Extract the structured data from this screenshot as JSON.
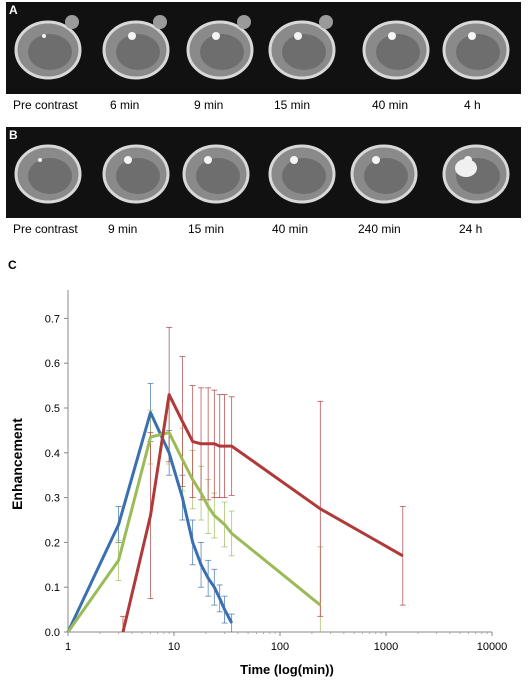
{
  "panel_a": {
    "label": "A",
    "captions": [
      "Pre contrast",
      "6 min",
      "9 min",
      "15 min",
      "40 min",
      "4 h"
    ]
  },
  "panel_b": {
    "label": "B",
    "captions": [
      "Pre contrast",
      "9 min",
      "15 min",
      "40 min",
      "240 min",
      "24 h"
    ]
  },
  "panel_c": {
    "label": "C"
  },
  "chart_data": {
    "type": "line",
    "title": "",
    "xlabel": "Time (log(min))",
    "ylabel": "Enhancement",
    "x_scale": "log",
    "xlim": [
      1,
      10000
    ],
    "ylim": [
      0,
      0.75
    ],
    "x_ticks": [
      "1",
      "10",
      "100",
      "1000",
      "10000"
    ],
    "y_ticks": [
      "0.0",
      "0.1",
      "0.2",
      "0.3",
      "0.4",
      "0.5",
      "0.6",
      "0.7"
    ],
    "grid": false,
    "legend": "none",
    "series": [
      {
        "color": "#3a6fb0",
        "points": [
          {
            "x": 1,
            "y": 0.0,
            "err": 0.0
          },
          {
            "x": 3,
            "y": 0.24,
            "err": 0.04
          },
          {
            "x": 6,
            "y": 0.49,
            "err": 0.065
          },
          {
            "x": 9,
            "y": 0.4,
            "err": 0.05
          },
          {
            "x": 12,
            "y": 0.3,
            "err": 0.05
          },
          {
            "x": 15,
            "y": 0.2,
            "err": 0.05
          },
          {
            "x": 18,
            "y": 0.15,
            "err": 0.05
          },
          {
            "x": 21,
            "y": 0.12,
            "err": 0.04
          },
          {
            "x": 24,
            "y": 0.1,
            "err": 0.04
          },
          {
            "x": 27,
            "y": 0.075,
            "err": 0.03
          },
          {
            "x": 30,
            "y": 0.05,
            "err": 0.03
          },
          {
            "x": 35,
            "y": 0.02,
            "err": 0.02
          }
        ]
      },
      {
        "color": "#9bbb59",
        "points": [
          {
            "x": 1,
            "y": 0.0,
            "err": 0.0
          },
          {
            "x": 3,
            "y": 0.16,
            "err": 0.045
          },
          {
            "x": 6,
            "y": 0.435,
            "err": 0.06
          },
          {
            "x": 9,
            "y": 0.445,
            "err": 0.07
          },
          {
            "x": 12,
            "y": 0.385,
            "err": 0.07
          },
          {
            "x": 15,
            "y": 0.34,
            "err": 0.065
          },
          {
            "x": 18,
            "y": 0.31,
            "err": 0.06
          },
          {
            "x": 21,
            "y": 0.28,
            "err": 0.06
          },
          {
            "x": 24,
            "y": 0.26,
            "err": 0.05
          },
          {
            "x": 30,
            "y": 0.24,
            "err": 0.05
          },
          {
            "x": 35,
            "y": 0.22,
            "err": 0.05
          },
          {
            "x": 240,
            "y": 0.06,
            "err": 0.13
          }
        ]
      },
      {
        "color": "#b03a3a",
        "points": [
          {
            "x": 3.3,
            "y": 0.0,
            "err": 0.035
          },
          {
            "x": 6,
            "y": 0.26,
            "err": 0.185
          },
          {
            "x": 9,
            "y": 0.53,
            "err": 0.15
          },
          {
            "x": 12,
            "y": 0.47,
            "err": 0.145
          },
          {
            "x": 15,
            "y": 0.425,
            "err": 0.125
          },
          {
            "x": 18,
            "y": 0.42,
            "err": 0.125
          },
          {
            "x": 21,
            "y": 0.42,
            "err": 0.125
          },
          {
            "x": 24,
            "y": 0.42,
            "err": 0.12
          },
          {
            "x": 27,
            "y": 0.415,
            "err": 0.115
          },
          {
            "x": 30,
            "y": 0.415,
            "err": 0.115
          },
          {
            "x": 35,
            "y": 0.415,
            "err": 0.11
          },
          {
            "x": 240,
            "y": 0.275,
            "err": 0.24
          },
          {
            "x": 1440,
            "y": 0.17,
            "err": 0.11
          }
        ]
      }
    ]
  }
}
